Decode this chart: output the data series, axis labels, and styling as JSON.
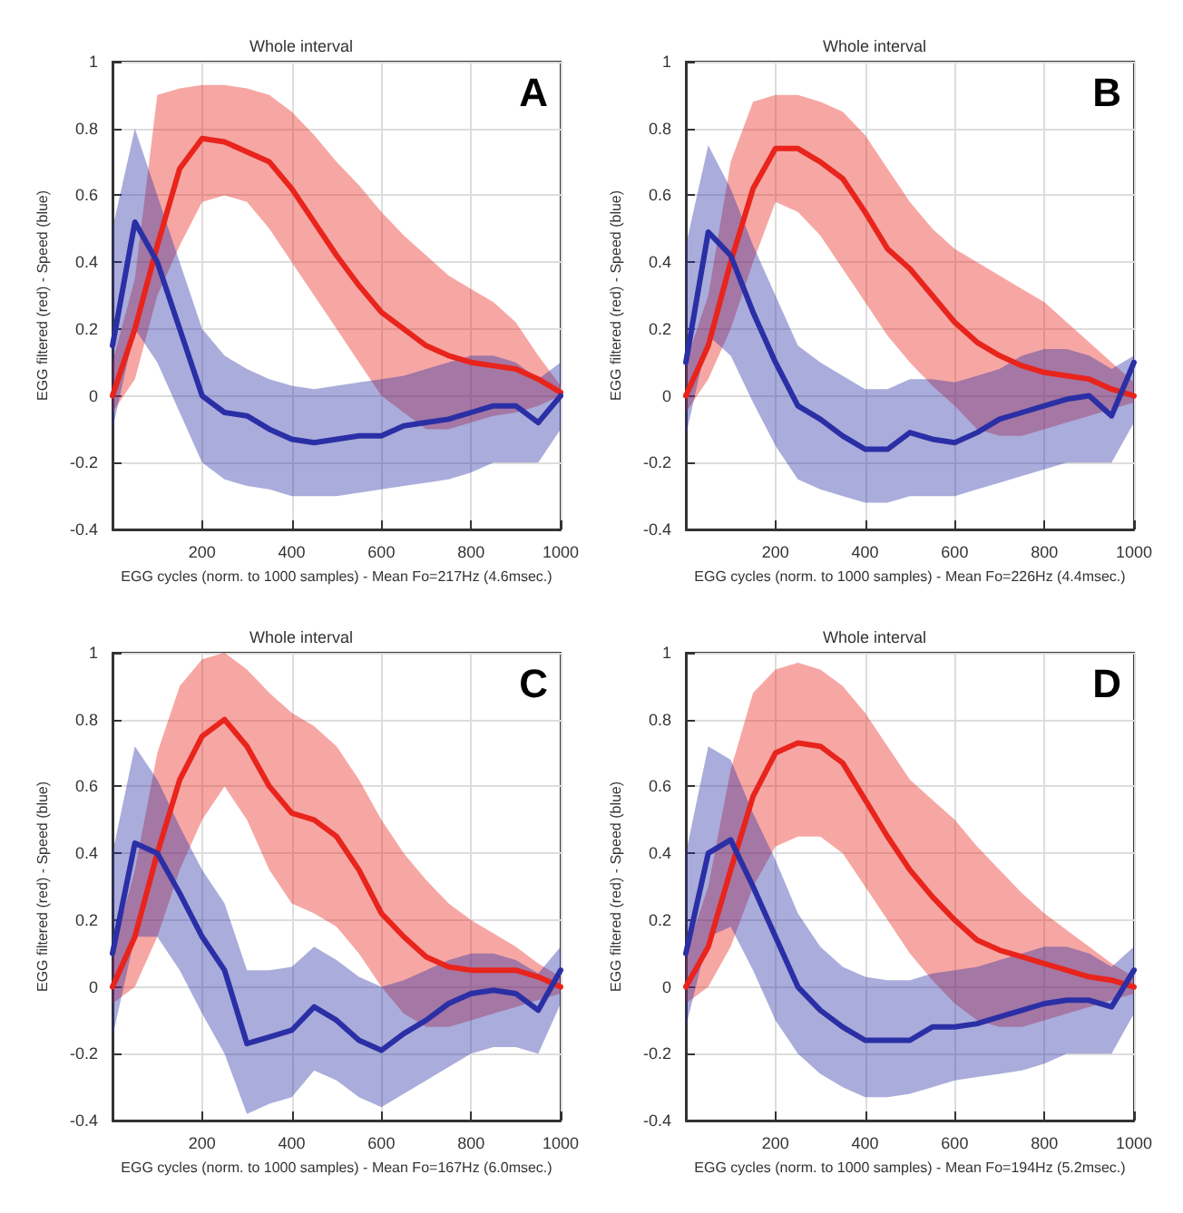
{
  "chart_data": [
    {
      "type": "line",
      "title": "Whole interval",
      "annotations": [
        "A"
      ],
      "xlabel": "EGG cycles (norm. to 1000 samples) - Mean Fo=217Hz (4.6msec.)",
      "ylabel": "EGG filtered (red) - Speed (blue)",
      "xlim": [
        0,
        1000
      ],
      "ylim": [
        -0.4,
        1
      ],
      "xticks": [
        200,
        400,
        600,
        800,
        1000
      ],
      "yticks": [
        -0.4,
        -0.2,
        0,
        0.2,
        0.4,
        0.6,
        0.8,
        1
      ],
      "grid": true,
      "line_style": "solid",
      "x": [
        0,
        50,
        100,
        150,
        200,
        250,
        300,
        350,
        400,
        450,
        500,
        550,
        600,
        650,
        700,
        750,
        800,
        850,
        900,
        950,
        1000
      ],
      "series": [
        {
          "color": "#e8241c",
          "values": [
            0,
            0.2,
            0.45,
            0.68,
            0.77,
            0.76,
            0.73,
            0.7,
            0.62,
            0.52,
            0.42,
            0.33,
            0.25,
            0.2,
            0.15,
            0.12,
            0.1,
            0.09,
            0.08,
            0.05,
            0.01
          ],
          "lower": [
            -0.05,
            0.05,
            0.3,
            0.45,
            0.58,
            0.6,
            0.58,
            0.5,
            0.4,
            0.3,
            0.2,
            0.1,
            0,
            -0.05,
            -0.1,
            -0.1,
            -0.08,
            -0.06,
            -0.05,
            -0.03,
            0
          ],
          "upper": [
            0.1,
            0.35,
            0.9,
            0.92,
            0.93,
            0.93,
            0.92,
            0.9,
            0.85,
            0.78,
            0.7,
            0.63,
            0.55,
            0.48,
            0.42,
            0.36,
            0.32,
            0.28,
            0.22,
            0.12,
            0.03
          ]
        },
        {
          "color": "#2b2fa5",
          "values": [
            0.15,
            0.52,
            0.4,
            0.2,
            0,
            -0.05,
            -0.06,
            -0.1,
            -0.13,
            -0.14,
            -0.13,
            -0.12,
            -0.12,
            -0.09,
            -0.08,
            -0.07,
            -0.05,
            -0.03,
            -0.03,
            -0.08,
            0
          ],
          "lower": [
            -0.1,
            0.2,
            0.1,
            -0.05,
            -0.2,
            -0.25,
            -0.27,
            -0.28,
            -0.3,
            -0.3,
            -0.3,
            -0.29,
            -0.28,
            -0.27,
            -0.26,
            -0.25,
            -0.23,
            -0.2,
            -0.2,
            -0.2,
            -0.1
          ],
          "upper": [
            0.5,
            0.8,
            0.6,
            0.4,
            0.2,
            0.12,
            0.08,
            0.05,
            0.03,
            0.02,
            0.03,
            0.04,
            0.05,
            0.06,
            0.08,
            0.1,
            0.12,
            0.12,
            0.1,
            0.05,
            0.1
          ]
        }
      ]
    },
    {
      "type": "line",
      "title": "Whole interval",
      "annotations": [
        "B"
      ],
      "xlabel": "EGG cycles (norm. to 1000 samples) - Mean Fo=226Hz (4.4msec.)",
      "ylabel": "EGG filtered (red) - Speed (blue)",
      "xlim": [
        0,
        1000
      ],
      "ylim": [
        -0.4,
        1
      ],
      "xticks": [
        200,
        400,
        600,
        800,
        1000
      ],
      "yticks": [
        -0.4,
        -0.2,
        0,
        0.2,
        0.4,
        0.6,
        0.8,
        1
      ],
      "grid": true,
      "line_style": "solid",
      "x": [
        0,
        50,
        100,
        150,
        200,
        250,
        300,
        350,
        400,
        450,
        500,
        550,
        600,
        650,
        700,
        750,
        800,
        850,
        900,
        950,
        1000
      ],
      "series": [
        {
          "color": "#e8241c",
          "values": [
            0,
            0.15,
            0.4,
            0.62,
            0.74,
            0.74,
            0.7,
            0.65,
            0.55,
            0.44,
            0.38,
            0.3,
            0.22,
            0.16,
            0.12,
            0.09,
            0.07,
            0.06,
            0.05,
            0.02,
            0
          ],
          "lower": [
            -0.05,
            0.05,
            0.2,
            0.4,
            0.58,
            0.55,
            0.48,
            0.38,
            0.28,
            0.18,
            0.1,
            0.03,
            -0.03,
            -0.1,
            -0.12,
            -0.12,
            -0.1,
            -0.08,
            -0.06,
            -0.04,
            -0.02
          ],
          "upper": [
            0.1,
            0.3,
            0.7,
            0.88,
            0.9,
            0.9,
            0.88,
            0.85,
            0.78,
            0.68,
            0.58,
            0.5,
            0.44,
            0.4,
            0.36,
            0.32,
            0.28,
            0.22,
            0.16,
            0.1,
            0.04
          ]
        },
        {
          "color": "#2b2fa5",
          "values": [
            0.1,
            0.49,
            0.42,
            0.25,
            0.1,
            -0.03,
            -0.07,
            -0.12,
            -0.16,
            -0.16,
            -0.11,
            -0.13,
            -0.14,
            -0.11,
            -0.07,
            -0.05,
            -0.03,
            -0.01,
            0,
            -0.06,
            0.1
          ],
          "lower": [
            -0.12,
            0.18,
            0.12,
            -0.02,
            -0.15,
            -0.25,
            -0.28,
            -0.3,
            -0.32,
            -0.32,
            -0.3,
            -0.3,
            -0.3,
            -0.28,
            -0.26,
            -0.24,
            -0.22,
            -0.2,
            -0.2,
            -0.2,
            -0.08
          ],
          "upper": [
            0.45,
            0.75,
            0.62,
            0.45,
            0.3,
            0.15,
            0.1,
            0.06,
            0.02,
            0.02,
            0.05,
            0.05,
            0.04,
            0.06,
            0.08,
            0.12,
            0.14,
            0.14,
            0.12,
            0.08,
            0.12
          ]
        }
      ]
    },
    {
      "type": "line",
      "title": "Whole interval",
      "annotations": [
        "C"
      ],
      "xlabel": "EGG cycles (norm. to 1000 samples) - Mean Fo=167Hz (6.0msec.)",
      "ylabel": "EGG filtered (red) - Speed (blue)",
      "xlim": [
        0,
        1000
      ],
      "ylim": [
        -0.4,
        1
      ],
      "xticks": [
        200,
        400,
        600,
        800,
        1000
      ],
      "yticks": [
        -0.4,
        -0.2,
        0,
        0.2,
        0.4,
        0.6,
        0.8,
        1
      ],
      "grid": true,
      "line_style": "solid",
      "x": [
        0,
        50,
        100,
        150,
        200,
        250,
        300,
        350,
        400,
        450,
        500,
        550,
        600,
        650,
        700,
        750,
        800,
        850,
        900,
        950,
        1000
      ],
      "series": [
        {
          "color": "#e8241c",
          "values": [
            0,
            0.15,
            0.4,
            0.62,
            0.75,
            0.8,
            0.72,
            0.6,
            0.52,
            0.5,
            0.45,
            0.35,
            0.22,
            0.15,
            0.09,
            0.06,
            0.05,
            0.05,
            0.05,
            0.03,
            0
          ],
          "lower": [
            -0.05,
            0,
            0.15,
            0.35,
            0.5,
            0.6,
            0.5,
            0.35,
            0.25,
            0.22,
            0.18,
            0.1,
            0,
            -0.08,
            -0.12,
            -0.12,
            -0.1,
            -0.08,
            -0.06,
            -0.04,
            -0.02
          ],
          "upper": [
            0.1,
            0.35,
            0.7,
            0.9,
            0.98,
            1,
            0.95,
            0.88,
            0.82,
            0.78,
            0.72,
            0.62,
            0.5,
            0.4,
            0.32,
            0.25,
            0.2,
            0.16,
            0.12,
            0.07,
            0.03
          ]
        },
        {
          "color": "#2b2fa5",
          "values": [
            0.1,
            0.43,
            0.4,
            0.28,
            0.15,
            0.05,
            -0.17,
            -0.15,
            -0.13,
            -0.06,
            -0.1,
            -0.16,
            -0.19,
            -0.14,
            -0.1,
            -0.05,
            -0.02,
            -0.01,
            -0.02,
            -0.07,
            0.05
          ],
          "lower": [
            -0.15,
            0.15,
            0.15,
            0.05,
            -0.08,
            -0.2,
            -0.38,
            -0.35,
            -0.33,
            -0.25,
            -0.28,
            -0.33,
            -0.36,
            -0.32,
            -0.28,
            -0.24,
            -0.2,
            -0.18,
            -0.18,
            -0.2,
            -0.05
          ],
          "upper": [
            0.4,
            0.72,
            0.62,
            0.48,
            0.35,
            0.25,
            0.05,
            0.05,
            0.06,
            0.12,
            0.08,
            0.03,
            0,
            0.02,
            0.05,
            0.08,
            0.1,
            0.1,
            0.08,
            0.04,
            0.12
          ]
        }
      ]
    },
    {
      "type": "line",
      "title": "Whole interval",
      "annotations": [
        "D"
      ],
      "xlabel": "EGG cycles (norm. to 1000 samples) - Mean Fo=194Hz (5.2msec.)",
      "ylabel": "EGG filtered (red) - Speed (blue)",
      "xlim": [
        0,
        1000
      ],
      "ylim": [
        -0.4,
        1
      ],
      "xticks": [
        200,
        400,
        600,
        800,
        1000
      ],
      "yticks": [
        -0.4,
        -0.2,
        0,
        0.2,
        0.4,
        0.6,
        0.8,
        1
      ],
      "grid": true,
      "line_style": "solid",
      "x": [
        0,
        50,
        100,
        150,
        200,
        250,
        300,
        350,
        400,
        450,
        500,
        550,
        600,
        650,
        700,
        750,
        800,
        850,
        900,
        950,
        1000
      ],
      "series": [
        {
          "color": "#e8241c",
          "values": [
            0,
            0.12,
            0.35,
            0.57,
            0.7,
            0.73,
            0.72,
            0.67,
            0.56,
            0.45,
            0.35,
            0.27,
            0.2,
            0.14,
            0.11,
            0.09,
            0.07,
            0.05,
            0.03,
            0.02,
            0
          ],
          "lower": [
            -0.05,
            0,
            0.12,
            0.3,
            0.42,
            0.45,
            0.45,
            0.4,
            0.3,
            0.2,
            0.1,
            0.02,
            -0.05,
            -0.1,
            -0.12,
            -0.12,
            -0.1,
            -0.08,
            -0.06,
            -0.04,
            -0.02
          ],
          "upper": [
            0.1,
            0.3,
            0.65,
            0.88,
            0.95,
            0.97,
            0.95,
            0.9,
            0.82,
            0.72,
            0.62,
            0.56,
            0.5,
            0.42,
            0.35,
            0.28,
            0.22,
            0.17,
            0.12,
            0.07,
            0.03
          ]
        },
        {
          "color": "#2b2fa5",
          "values": [
            0.1,
            0.4,
            0.44,
            0.3,
            0.15,
            0,
            -0.07,
            -0.12,
            -0.16,
            -0.16,
            -0.16,
            -0.12,
            -0.12,
            -0.11,
            -0.09,
            -0.07,
            -0.05,
            -0.04,
            -0.04,
            -0.06,
            0.05
          ],
          "lower": [
            -0.12,
            0.15,
            0.18,
            0.05,
            -0.1,
            -0.2,
            -0.26,
            -0.3,
            -0.33,
            -0.33,
            -0.32,
            -0.3,
            -0.28,
            -0.27,
            -0.26,
            -0.25,
            -0.23,
            -0.2,
            -0.2,
            -0.2,
            -0.08
          ],
          "upper": [
            0.4,
            0.72,
            0.68,
            0.52,
            0.38,
            0.22,
            0.12,
            0.06,
            0.03,
            0.02,
            0.02,
            0.04,
            0.05,
            0.06,
            0.08,
            0.1,
            0.12,
            0.12,
            0.1,
            0.06,
            0.12
          ]
        }
      ]
    }
  ]
}
